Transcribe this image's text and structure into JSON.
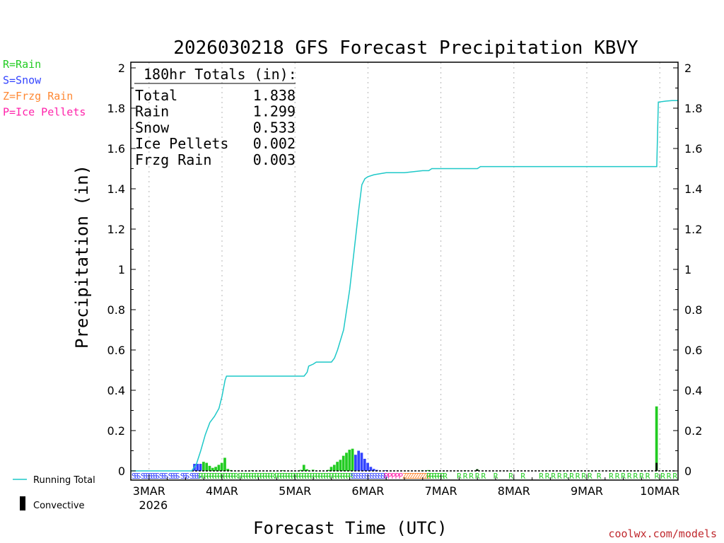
{
  "chart_data": {
    "type": "bar+line",
    "title": "2026030218 GFS Forecast Precipitation KBVY",
    "ylabel": "Precipitation (in)",
    "xlabel": "Forecast Time (UTC)",
    "ylim": [
      0,
      2
    ],
    "yticks": [
      "0",
      "0.2",
      "0.4",
      "0.6",
      "0.8",
      "1",
      "1.2",
      "1.4",
      "1.6",
      "1.8",
      "2"
    ],
    "xlim_hours": [
      0,
      180
    ],
    "xticks": [
      {
        "label": "3MAR",
        "sublabel": "2026",
        "hour": 6
      },
      {
        "label": "4MAR",
        "hour": 30
      },
      {
        "label": "5MAR",
        "hour": 54
      },
      {
        "label": "6MAR",
        "hour": 78
      },
      {
        "label": "7MAR",
        "hour": 102
      },
      {
        "label": "8MAR",
        "hour": 126
      },
      {
        "label": "9MAR",
        "hour": 150
      },
      {
        "label": "10MAR",
        "hour": 174
      }
    ],
    "totals_box": {
      "heading": "180hr Totals (in):",
      "rows": [
        {
          "label": "Total",
          "value": "1.838"
        },
        {
          "label": "Rain",
          "value": "1.299"
        },
        {
          "label": "Snow",
          "value": "0.533"
        },
        {
          "label": "Ice Pellets",
          "value": "0.002"
        },
        {
          "label": "Frzg Rain",
          "value": "0.003"
        }
      ]
    },
    "type_legend": [
      {
        "text": "R=Rain",
        "color": "#22cc22"
      },
      {
        "text": "S=Snow",
        "color": "#3344ff"
      },
      {
        "text": "Z=Frzg Rain",
        "color": "#ff8833"
      },
      {
        "text": "P=Ice Pellets",
        "color": "#ff22aa"
      }
    ],
    "series_legend": [
      {
        "text": "Running Total",
        "color": "#1ec8c8"
      },
      {
        "text": "Convective",
        "color": "#000000"
      }
    ],
    "running_total": [
      [
        0,
        0
      ],
      [
        20,
        0
      ],
      [
        21.5,
        0.03
      ],
      [
        23,
        0.1
      ],
      [
        24.5,
        0.18
      ],
      [
        26,
        0.24
      ],
      [
        27.5,
        0.27
      ],
      [
        29,
        0.31
      ],
      [
        30,
        0.37
      ],
      [
        31,
        0.45
      ],
      [
        31.5,
        0.47
      ],
      [
        34,
        0.47
      ],
      [
        40,
        0.47
      ],
      [
        50,
        0.47
      ],
      [
        57,
        0.47
      ],
      [
        58,
        0.49
      ],
      [
        58.5,
        0.52
      ],
      [
        60,
        0.53
      ],
      [
        61,
        0.54
      ],
      [
        64,
        0.54
      ],
      [
        66,
        0.54
      ],
      [
        67,
        0.56
      ],
      [
        68,
        0.6
      ],
      [
        70,
        0.7
      ],
      [
        72,
        0.9
      ],
      [
        73.5,
        1.1
      ],
      [
        75,
        1.3
      ],
      [
        76,
        1.42
      ],
      [
        77,
        1.45
      ],
      [
        78,
        1.46
      ],
      [
        80,
        1.47
      ],
      [
        84,
        1.48
      ],
      [
        90,
        1.48
      ],
      [
        96,
        1.49
      ],
      [
        98,
        1.49
      ],
      [
        99,
        1.5
      ],
      [
        110,
        1.5
      ],
      [
        114,
        1.5
      ],
      [
        115,
        1.51
      ],
      [
        140,
        1.51
      ],
      [
        170,
        1.51
      ],
      [
        173,
        1.51
      ],
      [
        173.5,
        1.83
      ],
      [
        176,
        1.835
      ],
      [
        178,
        1.838
      ],
      [
        180,
        1.838
      ]
    ],
    "bars": [
      {
        "hour": 21,
        "value": 0.035,
        "type": "snow"
      },
      {
        "hour": 22,
        "value": 0.035,
        "type": "snow"
      },
      {
        "hour": 23,
        "value": 0.035,
        "type": "snow"
      },
      {
        "hour": 24,
        "value": 0.045,
        "type": "rain"
      },
      {
        "hour": 25,
        "value": 0.04,
        "type": "rain"
      },
      {
        "hour": 26,
        "value": 0.025,
        "type": "rain"
      },
      {
        "hour": 27,
        "value": 0.015,
        "type": "rain"
      },
      {
        "hour": 28,
        "value": 0.02,
        "type": "rain"
      },
      {
        "hour": 29,
        "value": 0.03,
        "type": "rain"
      },
      {
        "hour": 30,
        "value": 0.04,
        "type": "rain"
      },
      {
        "hour": 31,
        "value": 0.065,
        "type": "rain"
      },
      {
        "hour": 32,
        "value": 0.01,
        "type": "rain"
      },
      {
        "hour": 33,
        "value": 0.004,
        "type": "rain"
      },
      {
        "hour": 40,
        "value": 0.003,
        "type": "rain"
      },
      {
        "hour": 50,
        "value": 0.003,
        "type": "rain"
      },
      {
        "hour": 56,
        "value": 0.005,
        "type": "rain"
      },
      {
        "hour": 57,
        "value": 0.03,
        "type": "rain"
      },
      {
        "hour": 58,
        "value": 0.008,
        "type": "rain"
      },
      {
        "hour": 60,
        "value": 0.006,
        "type": "rain"
      },
      {
        "hour": 65,
        "value": 0.005,
        "type": "rain"
      },
      {
        "hour": 66,
        "value": 0.02,
        "type": "rain"
      },
      {
        "hour": 67,
        "value": 0.03,
        "type": "rain"
      },
      {
        "hour": 68,
        "value": 0.045,
        "type": "rain"
      },
      {
        "hour": 69,
        "value": 0.055,
        "type": "rain"
      },
      {
        "hour": 70,
        "value": 0.075,
        "type": "rain"
      },
      {
        "hour": 71,
        "value": 0.09,
        "type": "rain"
      },
      {
        "hour": 72,
        "value": 0.105,
        "type": "rain"
      },
      {
        "hour": 73,
        "value": 0.11,
        "type": "rain"
      },
      {
        "hour": 74,
        "value": 0.08,
        "type": "snow"
      },
      {
        "hour": 75,
        "value": 0.1,
        "type": "snow"
      },
      {
        "hour": 76,
        "value": 0.09,
        "type": "snow"
      },
      {
        "hour": 77,
        "value": 0.06,
        "type": "snow"
      },
      {
        "hour": 78,
        "value": 0.04,
        "type": "snow"
      },
      {
        "hour": 79,
        "value": 0.02,
        "type": "snow"
      },
      {
        "hour": 80,
        "value": 0.01,
        "type": "snow"
      },
      {
        "hour": 81,
        "value": 0.005,
        "type": "snow"
      },
      {
        "hour": 84,
        "value": 0.003,
        "type": "snow"
      },
      {
        "hour": 96,
        "value": 0.003,
        "type": "rain"
      },
      {
        "hour": 98,
        "value": 0.004,
        "type": "rain"
      },
      {
        "hour": 110,
        "value": 0.003,
        "type": "rain"
      },
      {
        "hour": 114,
        "value": 0.008,
        "type": "rain",
        "convective": 0.008
      },
      {
        "hour": 173,
        "value": 0.32,
        "type": "rain",
        "convective": 0.04
      }
    ],
    "type_codes": {
      "snow": [
        [
          1,
          3
        ],
        [
          4,
          9
        ],
        [
          10,
          12
        ],
        [
          13,
          16
        ],
        [
          17,
          19
        ],
        [
          20,
          23
        ]
      ],
      "rain_dense": [
        [
          23,
          35
        ],
        [
          36,
          47
        ],
        [
          48,
          66
        ],
        [
          67,
          73
        ]
      ],
      "snow_dense": [
        [
          73,
          84
        ]
      ],
      "mixed": [
        [
          84,
          90
        ]
      ],
      "frzg": [
        [
          90,
          98
        ]
      ],
      "rain_mid": [
        [
          98,
          104
        ]
      ],
      "rain_sparse": [
        108,
        110,
        112,
        114,
        116,
        120,
        125,
        129,
        135,
        137,
        139,
        141,
        143,
        145,
        147,
        149,
        151,
        154,
        158,
        160,
        162,
        164,
        166,
        168,
        170,
        173,
        175,
        177,
        179
      ]
    }
  },
  "footer": {
    "credit": "coolwx.com/models"
  }
}
